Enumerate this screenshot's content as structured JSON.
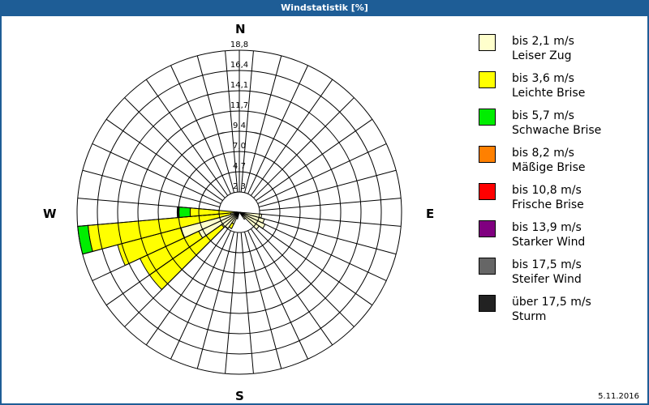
{
  "window": {
    "title": "Windstatistik [%]"
  },
  "compass": {
    "n": "N",
    "e": "E",
    "s": "S",
    "w": "W"
  },
  "footer": {
    "date": "5.11.2016"
  },
  "legend": [
    {
      "range": "bis 2,1 m/s",
      "name": "Leiser Zug",
      "color": "#ffffcc"
    },
    {
      "range": "bis 3,6 m/s",
      "name": "Leichte Brise",
      "color": "#ffff00"
    },
    {
      "range": "bis 5,7 m/s",
      "name": "Schwache Brise",
      "color": "#00ee00"
    },
    {
      "range": "bis 8,2 m/s",
      "name": "Mäßige Brise",
      "color": "#ff8000"
    },
    {
      "range": "bis 10,8 m/s",
      "name": "Frische Brise",
      "color": "#ff0000"
    },
    {
      "range": "bis 13,9 m/s",
      "name": "Starker Wind",
      "color": "#800080"
    },
    {
      "range": "bis 17,5 m/s",
      "name": "Steifer Wind",
      "color": "#666666"
    },
    {
      "range": "über 17,5 m/s",
      "name": "Sturm",
      "color": "#222222"
    }
  ],
  "chart_data": {
    "type": "windrose",
    "title": "Windstatistik [%]",
    "radial_ticks": [
      "2,3",
      "4,7",
      "7,0",
      "9,4",
      "11,7",
      "14,1",
      "16,4",
      "18,8"
    ],
    "radial_max": 18.8,
    "sector_width_deg": 10,
    "series": [
      "bis 2,1 m/s",
      "bis 3,6 m/s",
      "bis 5,7 m/s",
      "bis 8,2 m/s",
      "bis 10,8 m/s",
      "bis 13,9 m/s",
      "bis 17,5 m/s",
      "über 17,5 m/s"
    ],
    "sectors": [
      {
        "dir": 100,
        "values": [
          2.6,
          0,
          0,
          0,
          0,
          0,
          0,
          0
        ]
      },
      {
        "dir": 110,
        "values": [
          3.0,
          0,
          0,
          0,
          0,
          0,
          0,
          0
        ]
      },
      {
        "dir": 120,
        "values": [
          3.3,
          0,
          0,
          0,
          0,
          0,
          0,
          0
        ]
      },
      {
        "dir": 130,
        "values": [
          2.8,
          0,
          0,
          0,
          0,
          0,
          0,
          0
        ]
      },
      {
        "dir": 140,
        "values": [
          1.0,
          0,
          0,
          0,
          0,
          0,
          0,
          0
        ]
      },
      {
        "dir": 200,
        "values": [
          0.8,
          0,
          0,
          0,
          0,
          0,
          0,
          0
        ]
      },
      {
        "dir": 210,
        "values": [
          1.5,
          0.6,
          0,
          0,
          0,
          0,
          0,
          0
        ]
      },
      {
        "dir": 220,
        "values": [
          2.3,
          0,
          0,
          0,
          0,
          0,
          0,
          0
        ]
      },
      {
        "dir": 230,
        "values": [
          2.5,
          10.2,
          0,
          0,
          0,
          0,
          0,
          0
        ]
      },
      {
        "dir": 240,
        "values": [
          5.2,
          7.5,
          0,
          0,
          0,
          0,
          0,
          0
        ]
      },
      {
        "dir": 250,
        "values": [
          7.0,
          7.6,
          0,
          0,
          0,
          0,
          0,
          0
        ]
      },
      {
        "dir": 260,
        "values": [
          1.0,
          16.6,
          1.2,
          0,
          0,
          0,
          0,
          0
        ]
      },
      {
        "dir": 270,
        "values": [
          0.3,
          5.4,
          1.3,
          0,
          0,
          0,
          0,
          0.2
        ]
      }
    ]
  }
}
